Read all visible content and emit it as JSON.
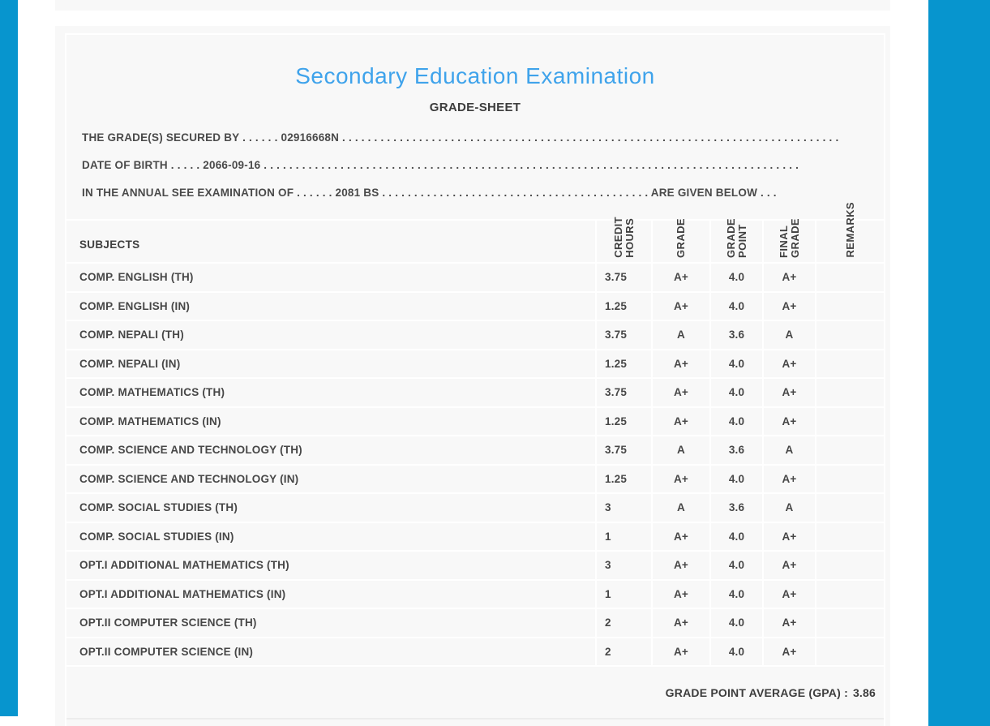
{
  "theme": {
    "accent_color": "#0795ce",
    "panel_bg": "#f8f8f8",
    "title_color": "#3fa3eb"
  },
  "document": {
    "title": "Secondary Education Examination",
    "subtitle": "GRADE-SHEET",
    "student_id": "02916668N",
    "date_of_birth": "2066-09-16",
    "exam_year": "2081 BS",
    "intro_lines": [
      "THE GRADE(S) SECURED BY . . . . . . 02916668N . . . . . . . . . . . . . . . . . . . . . . . . . . . . . . . . . . . . . . . . . . . . . . . . . . . . . . . . . . . . . . . . . . . . . . . . . . . . . .",
      "DATE OF BIRTH . . . . . 2066-09-16 . . . . . . . . . . . . . . . . . . . . . . . . . . . . . . . . . . . . . . . . . . . . . . . . . . . . . . . . . . . . . . . . . . . . . . . . . . . . . . . . . . . .",
      "IN THE ANNUAL SEE EXAMINATION OF . . . . . . 2081 BS . . . . . . . . . . . . . . . . . . . . . . . . . . . . . . . . . . . . . . . . . . ARE GIVEN BELOW . . ."
    ]
  },
  "table": {
    "headers": {
      "subjects": "SUBJECTS",
      "credit_hours": "CREDIT\nHOURS",
      "grade": "GRADE",
      "grade_point": "GRADE\nPOINT",
      "final_grade": "FINAL\nGRADE",
      "remarks": "REMARKS"
    },
    "rows": [
      {
        "subject": "COMP. ENGLISH (TH)",
        "credit_hours": "3.75",
        "grade": "A+",
        "grade_point": "4.0",
        "final_grade": "A+",
        "remarks": ""
      },
      {
        "subject": "COMP. ENGLISH (IN)",
        "credit_hours": "1.25",
        "grade": "A+",
        "grade_point": "4.0",
        "final_grade": "A+",
        "remarks": ""
      },
      {
        "subject": "COMP. NEPALI (TH)",
        "credit_hours": "3.75",
        "grade": "A",
        "grade_point": "3.6",
        "final_grade": "A",
        "remarks": ""
      },
      {
        "subject": "COMP. NEPALI (IN)",
        "credit_hours": "1.25",
        "grade": "A+",
        "grade_point": "4.0",
        "final_grade": "A+",
        "remarks": ""
      },
      {
        "subject": "COMP. MATHEMATICS (TH)",
        "credit_hours": "3.75",
        "grade": "A+",
        "grade_point": "4.0",
        "final_grade": "A+",
        "remarks": ""
      },
      {
        "subject": "COMP. MATHEMATICS (IN)",
        "credit_hours": "1.25",
        "grade": "A+",
        "grade_point": "4.0",
        "final_grade": "A+",
        "remarks": ""
      },
      {
        "subject": "COMP. SCIENCE AND TECHNOLOGY (TH)",
        "credit_hours": "3.75",
        "grade": "A",
        "grade_point": "3.6",
        "final_grade": "A",
        "remarks": ""
      },
      {
        "subject": "COMP. SCIENCE AND TECHNOLOGY (IN)",
        "credit_hours": "1.25",
        "grade": "A+",
        "grade_point": "4.0",
        "final_grade": "A+",
        "remarks": ""
      },
      {
        "subject": "COMP. SOCIAL STUDIES (TH)",
        "credit_hours": "3",
        "grade": "A",
        "grade_point": "3.6",
        "final_grade": "A",
        "remarks": ""
      },
      {
        "subject": "COMP. SOCIAL STUDIES (IN)",
        "credit_hours": "1",
        "grade": "A+",
        "grade_point": "4.0",
        "final_grade": "A+",
        "remarks": ""
      },
      {
        "subject": "OPT.I ADDITIONAL MATHEMATICS (TH)",
        "credit_hours": "3",
        "grade": "A+",
        "grade_point": "4.0",
        "final_grade": "A+",
        "remarks": ""
      },
      {
        "subject": "OPT.I ADDITIONAL MATHEMATICS (IN)",
        "credit_hours": "1",
        "grade": "A+",
        "grade_point": "4.0",
        "final_grade": "A+",
        "remarks": ""
      },
      {
        "subject": "OPT.II COMPUTER SCIENCE (TH)",
        "credit_hours": "2",
        "grade": "A+",
        "grade_point": "4.0",
        "final_grade": "A+",
        "remarks": ""
      },
      {
        "subject": "OPT.II COMPUTER SCIENCE (IN)",
        "credit_hours": "2",
        "grade": "A+",
        "grade_point": "4.0",
        "final_grade": "A+",
        "remarks": ""
      }
    ],
    "gpa_label": "GRADE POINT AVERAGE (GPA) :",
    "gpa_value": "3.86"
  }
}
